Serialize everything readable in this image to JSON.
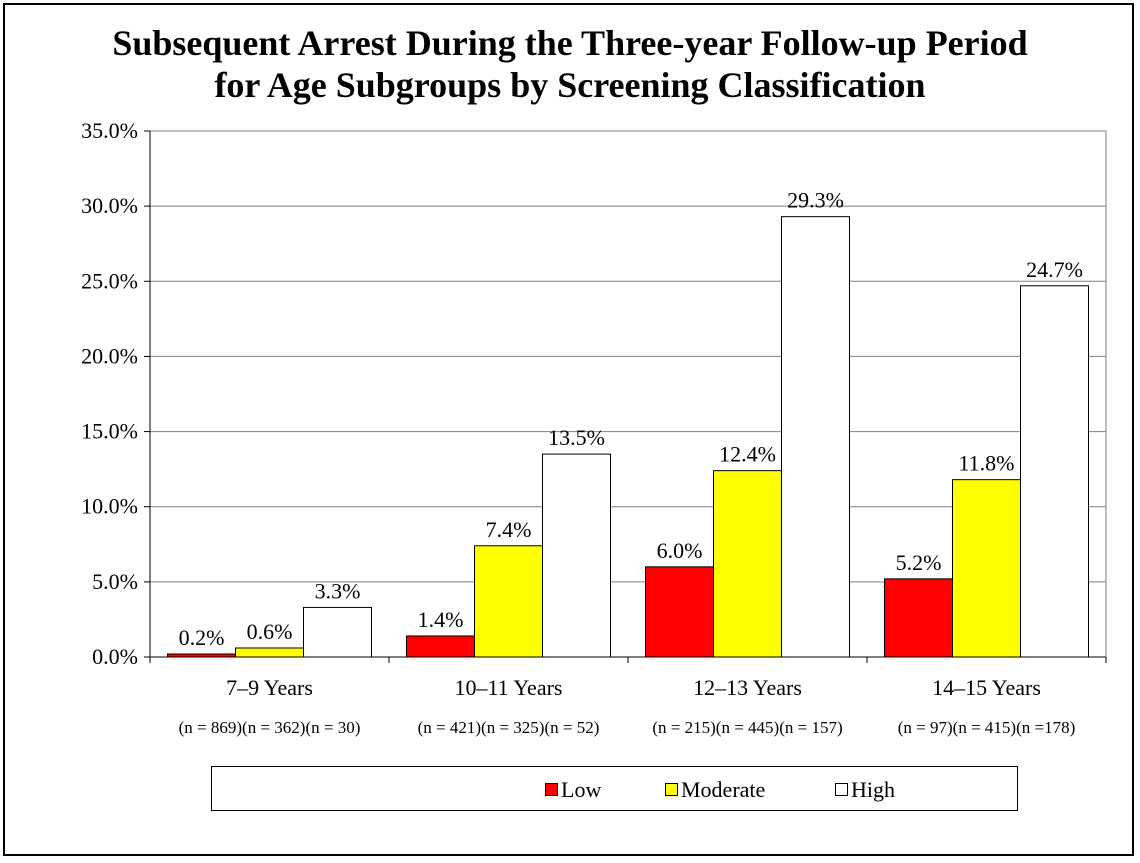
{
  "chart_data": {
    "type": "bar",
    "title_lines": [
      "Subsequent Arrest During the Three-year Follow-up Period",
      "for Age Subgroups by Screening Classification"
    ],
    "categories": [
      "7–9 Years",
      "10–11 Years",
      "12–13 Years",
      "14–15 Years"
    ],
    "subcategory_labels": [
      "(n = 869)(n = 362)(n = 30)",
      "(n = 421)(n = 325)(n = 52)",
      "(n = 215)(n = 445)(n = 157)",
      "(n = 97)(n = 415)(n =178)"
    ],
    "series": [
      {
        "name": "Low",
        "color": "#ff0000",
        "values": [
          0.2,
          1.4,
          6.0,
          5.2
        ],
        "labels": [
          "0.2%",
          "1.4%",
          "6.0%",
          "5.2%"
        ]
      },
      {
        "name": "Moderate",
        "color": "#ffff00",
        "values": [
          0.6,
          7.4,
          12.4,
          11.8
        ],
        "labels": [
          "0.6%",
          "7.4%",
          "12.4%",
          "11.8%"
        ]
      },
      {
        "name": "High",
        "color": "#ffffff",
        "values": [
          3.3,
          13.5,
          29.3,
          24.7
        ],
        "labels": [
          "3.3%",
          "13.5%",
          "29.3%",
          "24.7%"
        ]
      }
    ],
    "ylim": [
      0,
      35
    ],
    "yticks": [
      0,
      5,
      10,
      15,
      20,
      25,
      30,
      35
    ],
    "ytick_labels": [
      "0.0%",
      "5.0%",
      "10.0%",
      "15.0%",
      "20.0%",
      "25.0%",
      "30.0%",
      "35.0%"
    ],
    "grid": true,
    "legend_position": "bottom"
  }
}
